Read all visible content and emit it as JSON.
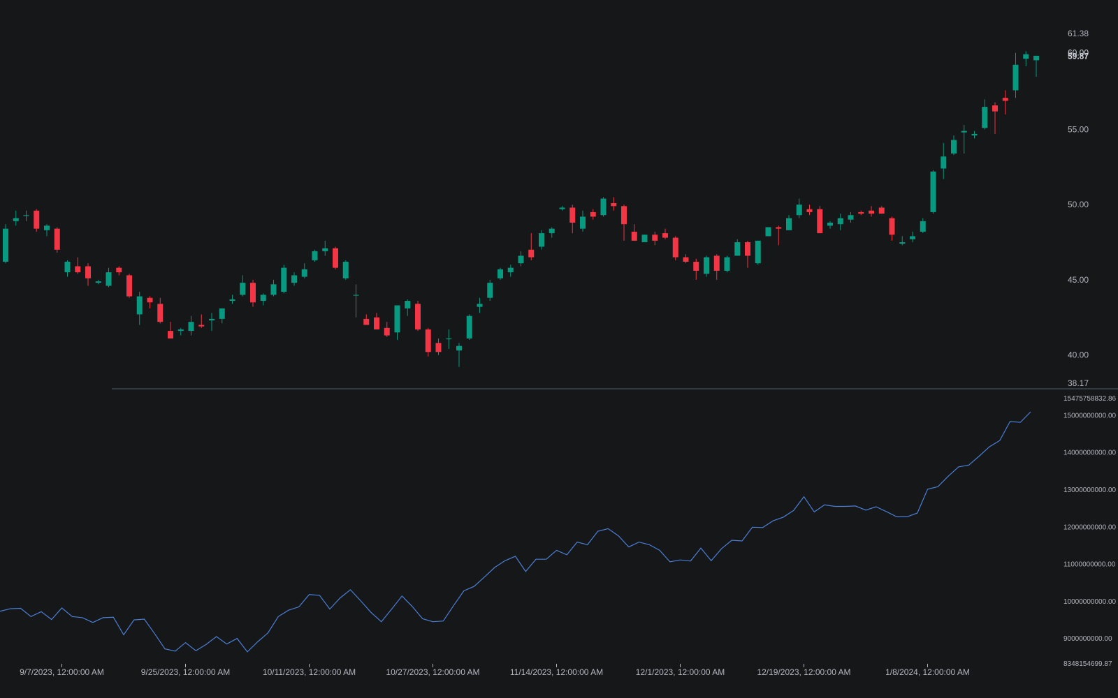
{
  "colors": {
    "background": "#151719",
    "up": "#089981",
    "down": "#f23645",
    "line": "#4c7fd6",
    "text": "#b2b5be",
    "separator": "#4b6272"
  },
  "chart_data": [
    {
      "type": "candlestick",
      "ylim": [
        38.17,
        61.38
      ],
      "y_ticks": [
        "61.38",
        "55.00",
        "50.00",
        "45.00",
        "40.00",
        "38.17"
      ],
      "last_price_labels": [
        "60.00",
        "59.87"
      ],
      "candles": [
        [
          46.2,
          48.7,
          46.1,
          48.4
        ],
        [
          48.9,
          49.6,
          48.6,
          49.1
        ],
        [
          49.3,
          49.6,
          48.9,
          49.3
        ],
        [
          49.6,
          49.7,
          48.2,
          48.4
        ],
        [
          48.3,
          48.7,
          47.9,
          48.6
        ],
        [
          48.4,
          48.5,
          46.8,
          47.0
        ],
        [
          45.5,
          46.3,
          45.2,
          46.2
        ],
        [
          45.9,
          46.5,
          45.4,
          45.5
        ],
        [
          45.9,
          46.1,
          44.6,
          45.1
        ],
        [
          44.8,
          45.0,
          44.7,
          44.9
        ],
        [
          44.6,
          45.8,
          44.5,
          45.5
        ],
        [
          45.8,
          45.9,
          45.3,
          45.5
        ],
        [
          45.3,
          45.4,
          43.8,
          43.9
        ],
        [
          42.7,
          44.2,
          42.0,
          43.9
        ],
        [
          43.8,
          43.9,
          43.1,
          43.5
        ],
        [
          43.4,
          43.8,
          42.1,
          42.2
        ],
        [
          41.6,
          42.2,
          41.1,
          41.1
        ],
        [
          41.6,
          41.8,
          41.3,
          41.7
        ],
        [
          41.6,
          42.6,
          41.3,
          42.2
        ],
        [
          42.0,
          42.7,
          41.8,
          41.9
        ],
        [
          42.3,
          42.8,
          41.6,
          42.4
        ],
        [
          42.4,
          43.1,
          42.1,
          43.1
        ],
        [
          43.6,
          44.0,
          43.4,
          43.7
        ],
        [
          44.0,
          45.3,
          43.9,
          44.8
        ],
        [
          44.8,
          45.0,
          43.2,
          43.5
        ],
        [
          43.6,
          44.1,
          43.3,
          44.0
        ],
        [
          44.0,
          45.0,
          43.9,
          44.7
        ],
        [
          44.2,
          46.0,
          44.1,
          45.8
        ],
        [
          44.8,
          45.5,
          44.6,
          45.3
        ],
        [
          45.2,
          46.1,
          45.1,
          45.7
        ],
        [
          46.3,
          47.0,
          46.2,
          46.9
        ],
        [
          46.9,
          47.6,
          46.6,
          47.1
        ],
        [
          47.1,
          47.2,
          45.7,
          45.8
        ],
        [
          45.1,
          46.3,
          45.0,
          46.2
        ],
        [
          44.0,
          44.7,
          42.5,
          44.0
        ],
        [
          42.4,
          42.7,
          42.0,
          42.0
        ],
        [
          42.5,
          42.8,
          41.8,
          41.7
        ],
        [
          41.8,
          42.2,
          41.2,
          41.3
        ],
        [
          41.5,
          43.1,
          41.0,
          43.3
        ],
        [
          43.1,
          43.7,
          42.6,
          43.6
        ],
        [
          43.4,
          43.6,
          41.6,
          41.7
        ],
        [
          41.7,
          41.8,
          39.9,
          40.2
        ],
        [
          40.8,
          41.1,
          40.0,
          40.2
        ],
        [
          41.1,
          41.7,
          40.4,
          41.1
        ],
        [
          40.3,
          40.8,
          39.2,
          40.6
        ],
        [
          41.1,
          42.7,
          41.0,
          42.6
        ],
        [
          43.2,
          43.8,
          42.8,
          43.4
        ],
        [
          43.8,
          45.0,
          43.6,
          44.8
        ],
        [
          45.1,
          45.8,
          45.0,
          45.7
        ],
        [
          45.5,
          46.0,
          45.2,
          45.8
        ],
        [
          46.1,
          46.9,
          45.9,
          46.6
        ],
        [
          47.0,
          48.1,
          46.3,
          46.5
        ],
        [
          47.2,
          48.3,
          47.0,
          48.1
        ],
        [
          48.1,
          48.5,
          47.8,
          48.4
        ],
        [
          49.7,
          49.9,
          49.6,
          49.8
        ],
        [
          49.8,
          50.0,
          48.1,
          48.8
        ],
        [
          48.4,
          49.6,
          48.2,
          49.2
        ],
        [
          49.5,
          49.7,
          49.0,
          49.2
        ],
        [
          49.3,
          50.5,
          49.2,
          50.4
        ],
        [
          50.1,
          50.5,
          49.6,
          49.9
        ],
        [
          49.9,
          50.0,
          47.6,
          48.7
        ],
        [
          48.2,
          48.7,
          47.6,
          47.6
        ],
        [
          47.5,
          48.0,
          47.5,
          48.0
        ],
        [
          48.0,
          48.2,
          47.3,
          47.6
        ],
        [
          48.1,
          48.4,
          47.7,
          47.8
        ],
        [
          47.8,
          47.9,
          46.3,
          46.5
        ],
        [
          46.5,
          46.7,
          46.1,
          46.2
        ],
        [
          46.2,
          46.4,
          45.0,
          45.6
        ],
        [
          45.4,
          46.6,
          45.2,
          46.5
        ],
        [
          46.6,
          46.7,
          45.0,
          45.6
        ],
        [
          45.6,
          46.6,
          45.5,
          46.5
        ],
        [
          46.6,
          47.7,
          46.6,
          47.5
        ],
        [
          47.5,
          47.6,
          45.8,
          46.6
        ],
        [
          46.1,
          47.6,
          46.0,
          47.6
        ],
        [
          47.9,
          48.5,
          47.9,
          48.5
        ],
        [
          48.5,
          48.6,
          47.3,
          48.4
        ],
        [
          48.3,
          49.3,
          48.3,
          49.1
        ],
        [
          49.3,
          50.4,
          49.1,
          50.0
        ],
        [
          49.7,
          50.0,
          49.3,
          49.5
        ],
        [
          49.7,
          49.9,
          48.1,
          48.1
        ],
        [
          48.6,
          48.9,
          48.4,
          48.8
        ],
        [
          48.7,
          49.4,
          48.3,
          49.1
        ],
        [
          49.0,
          49.5,
          48.8,
          49.3
        ],
        [
          49.5,
          49.6,
          49.3,
          49.4
        ],
        [
          49.6,
          49.9,
          49.2,
          49.4
        ],
        [
          49.8,
          49.9,
          49.4,
          49.4
        ],
        [
          49.1,
          49.2,
          47.6,
          48.0
        ],
        [
          47.4,
          47.9,
          47.3,
          47.5
        ],
        [
          47.7,
          48.2,
          47.5,
          47.9
        ],
        [
          48.2,
          49.1,
          48.1,
          48.9
        ],
        [
          49.5,
          52.3,
          49.4,
          52.2
        ],
        [
          52.4,
          54.1,
          51.7,
          53.2
        ],
        [
          53.4,
          54.6,
          53.3,
          54.3
        ],
        [
          54.8,
          55.3,
          53.4,
          54.9
        ],
        [
          54.6,
          54.9,
          54.4,
          54.7
        ],
        [
          55.1,
          57.0,
          55.0,
          56.5
        ],
        [
          56.6,
          56.8,
          54.7,
          56.2
        ],
        [
          57.1,
          57.6,
          56.0,
          56.9
        ],
        [
          57.6,
          60.1,
          57.1,
          59.3
        ],
        [
          59.7,
          60.2,
          59.2,
          60.0
        ],
        [
          59.6,
          59.9,
          58.5,
          59.9
        ]
      ]
    },
    {
      "type": "line",
      "ylim": [
        8348154699.87,
        15475758832.86
      ],
      "y_ticks": [
        "15475758832.86",
        "15000000000.00",
        "14000000000.00",
        "13000000000.00",
        "12000000000.00",
        "11000000000.00",
        "10000000000.00",
        "9000000000.00",
        "8348154699.87"
      ],
      "x_ticks": [
        "9/7/2023, 12:00:00 AM",
        "9/25/2023, 12:00:00 AM",
        "10/11/2023, 12:00:00 AM",
        "10/27/2023, 12:00:00 AM",
        "11/14/2023, 12:00:00 AM",
        "12/1/2023, 12:00:00 AM",
        "12/19/2023, 12:00:00 AM",
        "1/8/2024, 12:00:00 AM"
      ],
      "values": [
        9740000000,
        9810000000,
        9820000000,
        9600000000,
        9730000000,
        9520000000,
        9830000000,
        9600000000,
        9570000000,
        9440000000,
        9570000000,
        9580000000,
        9110000000,
        9510000000,
        9530000000,
        9140000000,
        8730000000,
        8670000000,
        8900000000,
        8680000000,
        8850000000,
        9060000000,
        8860000000,
        9010000000,
        8650000000,
        8920000000,
        9160000000,
        9600000000,
        9770000000,
        9860000000,
        10190000000,
        10170000000,
        9800000000,
        10100000000,
        10320000000,
        10020000000,
        9710000000,
        9460000000,
        9800000000,
        10150000000,
        9870000000,
        9540000000,
        9460000000,
        9480000000,
        9890000000,
        10290000000,
        10410000000,
        10660000000,
        10920000000,
        11100000000,
        11220000000,
        10810000000,
        11140000000,
        11140000000,
        11380000000,
        11260000000,
        11600000000,
        11530000000,
        11890000000,
        11960000000,
        11770000000,
        11470000000,
        11600000000,
        11530000000,
        11380000000,
        11070000000,
        11120000000,
        11090000000,
        11440000000,
        11100000000,
        11420000000,
        11650000000,
        11630000000,
        12000000000,
        11990000000,
        12170000000,
        12270000000,
        12450000000,
        12820000000,
        12410000000,
        12600000000,
        12560000000,
        12560000000,
        12570000000,
        12460000000,
        12550000000,
        12420000000,
        12280000000,
        12280000000,
        12380000000,
        13020000000,
        13090000000,
        13370000000,
        13620000000,
        13670000000,
        13910000000,
        14160000000,
        14330000000,
        14840000000,
        14820000000,
        15100000000
      ]
    }
  ]
}
